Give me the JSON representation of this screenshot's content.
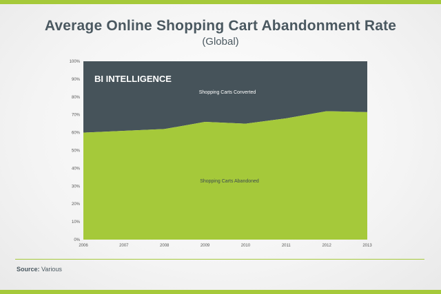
{
  "title": "Average Online Shopping Cart Abandonment Rate",
  "subtitle": "(Global)",
  "watermark": "BI INTELLIGENCE",
  "source": {
    "label": "Source:",
    "value": "Various"
  },
  "colors": {
    "abandoned": "#a5c93a",
    "converted": "#46535a",
    "accent": "#a5c93a",
    "text": "#4a5860"
  },
  "chart_data": {
    "type": "area",
    "stacked": true,
    "x": [
      "2006",
      "2007",
      "2008",
      "2009",
      "2010",
      "2011",
      "2012",
      "2013"
    ],
    "series": [
      {
        "name": "Shopping Carts Abandoned",
        "values": [
          60,
          61,
          62,
          66,
          65,
          68,
          72,
          71.5
        ]
      },
      {
        "name": "Shopping Carts Converted",
        "values": [
          40,
          39,
          38,
          34,
          35,
          32,
          28,
          28.5
        ]
      }
    ],
    "ylim": [
      0,
      100
    ],
    "yticks": [
      "0%",
      "10%",
      "20%",
      "30%",
      "40%",
      "50%",
      "60%",
      "70%",
      "80%",
      "90%",
      "100%"
    ],
    "xlabel": "",
    "ylabel": "",
    "legend": "inline labels"
  }
}
